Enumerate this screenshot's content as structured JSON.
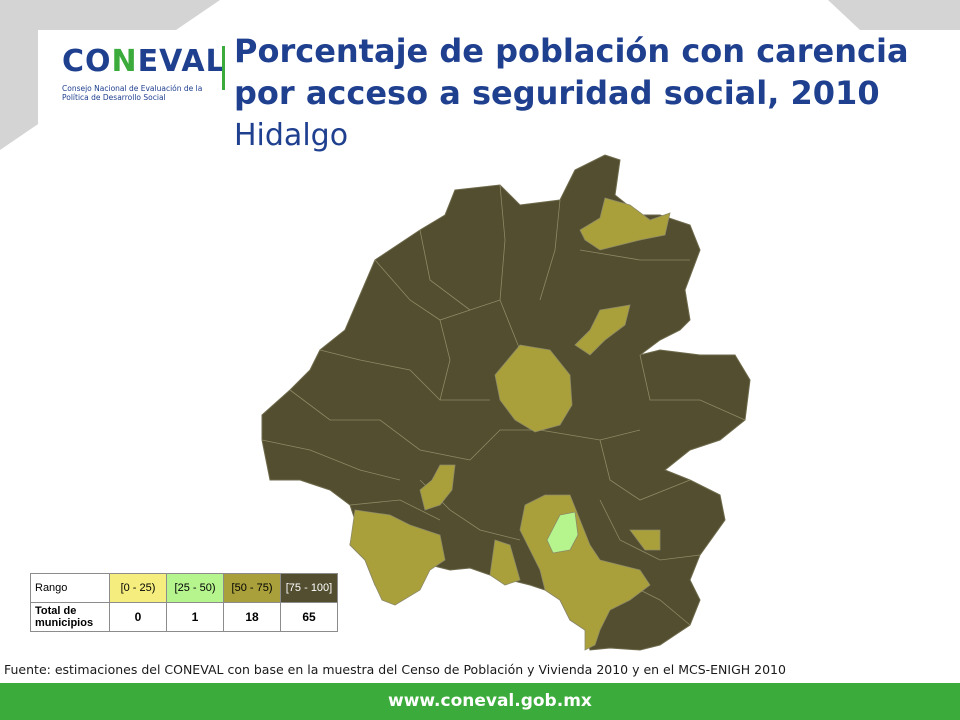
{
  "logo": {
    "brand": "CONEVAL",
    "subtitle": "Consejo Nacional de Evaluación de la Política de Desarrollo Social"
  },
  "title": "Porcentaje de población con carencia por acceso a seguridad social, 2010",
  "subtitle": "Hidalgo",
  "legend": {
    "header_label": "Rango",
    "count_label": "Total de municipios",
    "ranges": [
      {
        "label": "[0 - 25)",
        "count": "0",
        "color": "#f5ee7e"
      },
      {
        "label": "[25 - 50)",
        "count": "1",
        "color": "#b6f58e"
      },
      {
        "label": "[50 - 75)",
        "count": "18",
        "color": "#a9a03c"
      },
      {
        "label": "[75 - 100]",
        "count": "65",
        "color": "#524e2f"
      }
    ]
  },
  "source": "Fuente: estimaciones del CONEVAL con base en la muestra del Censo de Población y Vivienda 2010 y en el MCS-ENIGH 2010",
  "footer": {
    "url": "www.coneval.gob.mx"
  },
  "colors": {
    "brand_blue": "#1f3f8f",
    "brand_green": "#3bab3b",
    "dark_olive": "#524e2f",
    "olive": "#a9a03c",
    "light_green": "#b6f58e"
  }
}
